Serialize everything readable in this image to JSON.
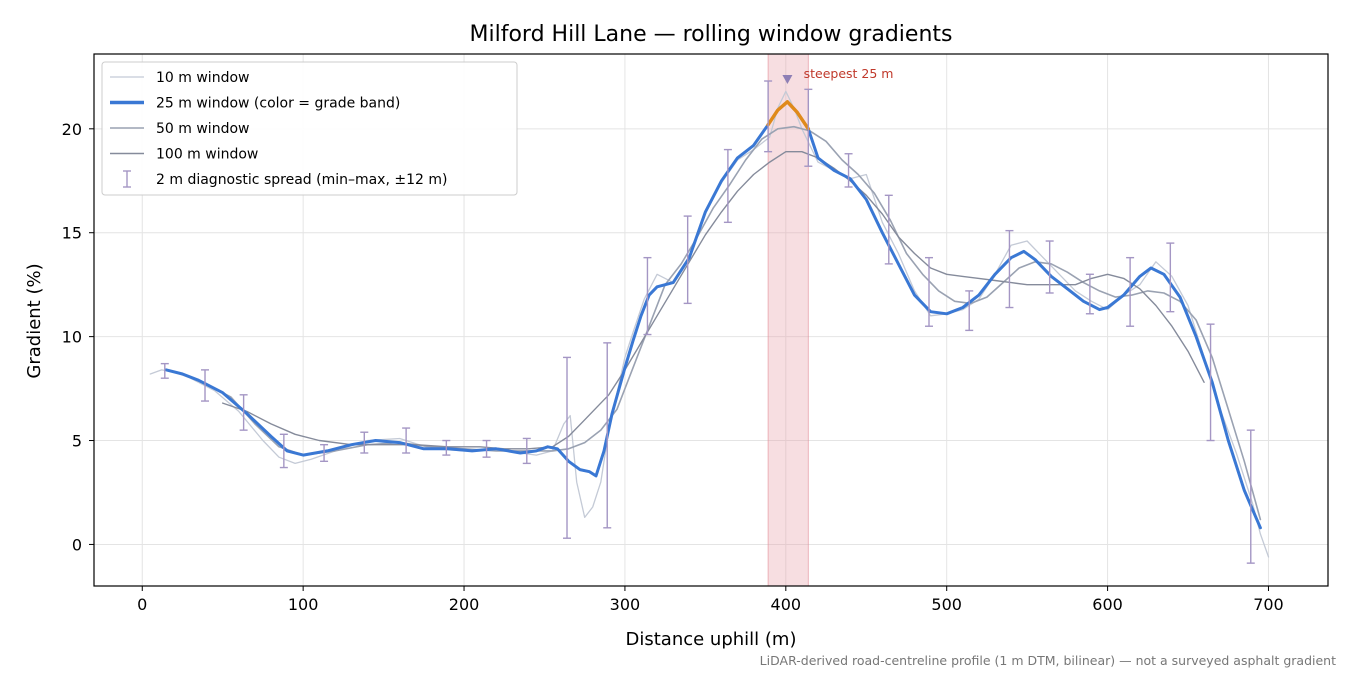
{
  "chart_data": {
    "type": "line",
    "title": "Milford Hill Lane — rolling window gradients",
    "xlabel": "Distance uphill (m)",
    "ylabel": "Gradient (%)",
    "xlim": [
      -30,
      737
    ],
    "ylim": [
      -2,
      23.6
    ],
    "xticks": [
      0,
      100,
      200,
      300,
      400,
      500,
      600,
      700
    ],
    "yticks": [
      0,
      5,
      10,
      15,
      20
    ],
    "grid": true,
    "legend_position": "top-left",
    "caption": "LiDAR-derived road-centreline profile (1 m DTM, bilinear) — not a surveyed asphalt gradient",
    "highlight": {
      "x_start": 389,
      "x_end": 414,
      "label": "steepest 25 m",
      "peak_x": 401,
      "peak_y": 22.3,
      "color": "#e8a0a8"
    },
    "series": [
      {
        "name": "10 m window",
        "color": "#c4cad6",
        "x": [
          5,
          12,
          20,
          30,
          45,
          60,
          75,
          85,
          95,
          105,
          120,
          140,
          160,
          180,
          200,
          220,
          235,
          245,
          255,
          262,
          266,
          270,
          275,
          280,
          285,
          290,
          300,
          305,
          312,
          320,
          330,
          340,
          350,
          360,
          370,
          380,
          390,
          395,
          400,
          405,
          410,
          415,
          420,
          430,
          440,
          450,
          460,
          470,
          480,
          490,
          500,
          510,
          520,
          530,
          540,
          550,
          560,
          570,
          580,
          590,
          600,
          610,
          620,
          630,
          640,
          650,
          660,
          670,
          680,
          690,
          695,
          700
        ],
        "y": [
          8.2,
          8.4,
          8.3,
          8.0,
          7.4,
          6.4,
          5.0,
          4.2,
          3.9,
          4.1,
          4.5,
          5.0,
          5.1,
          4.6,
          4.5,
          4.6,
          4.4,
          4.3,
          4.5,
          5.8,
          6.2,
          3.0,
          1.3,
          1.8,
          3.0,
          5.5,
          9.0,
          10.2,
          11.8,
          13.0,
          12.6,
          13.8,
          16.0,
          17.4,
          18.5,
          19.0,
          19.6,
          21.0,
          21.8,
          21.0,
          20.0,
          19.2,
          18.4,
          18.0,
          17.6,
          17.8,
          15.5,
          14.0,
          12.2,
          11.0,
          11.1,
          11.3,
          11.8,
          13.0,
          14.4,
          14.6,
          13.8,
          13.0,
          12.2,
          11.7,
          11.3,
          12.0,
          12.5,
          13.6,
          12.9,
          11.5,
          9.0,
          6.5,
          4.4,
          2.0,
          0.5,
          -0.6
        ]
      },
      {
        "name": "25 m window (color = grade band)",
        "color": "#3a78d4",
        "highlight_color": "#e08a1a",
        "x": [
          15,
          25,
          35,
          50,
          65,
          80,
          90,
          100,
          115,
          130,
          145,
          160,
          175,
          190,
          205,
          220,
          235,
          245,
          252,
          258,
          265,
          272,
          278,
          282,
          287,
          292,
          300,
          305,
          310,
          315,
          320,
          330,
          340,
          350,
          360,
          370,
          380,
          389,
          395,
          401,
          407,
          414,
          420,
          430,
          440,
          450,
          460,
          470,
          480,
          490,
          500,
          510,
          520,
          530,
          540,
          548,
          555,
          565,
          575,
          585,
          595,
          600,
          610,
          620,
          627,
          635,
          645,
          655,
          665,
          675,
          685,
          695
        ],
        "y": [
          8.4,
          8.2,
          7.9,
          7.3,
          6.3,
          5.2,
          4.5,
          4.3,
          4.5,
          4.8,
          5.0,
          4.9,
          4.6,
          4.6,
          4.5,
          4.6,
          4.4,
          4.5,
          4.7,
          4.6,
          4.0,
          3.6,
          3.5,
          3.3,
          4.5,
          6.3,
          8.5,
          9.8,
          11.0,
          12.0,
          12.4,
          12.6,
          13.8,
          16.0,
          17.5,
          18.6,
          19.2,
          20.2,
          20.9,
          21.3,
          20.8,
          20.0,
          18.6,
          18.0,
          17.6,
          16.6,
          15.0,
          13.5,
          12.0,
          11.2,
          11.1,
          11.4,
          12.0,
          13.0,
          13.8,
          14.1,
          13.7,
          12.9,
          12.3,
          11.7,
          11.3,
          11.4,
          12.0,
          12.9,
          13.3,
          13.0,
          11.9,
          10.0,
          7.8,
          5.0,
          2.6,
          0.8
        ]
      },
      {
        "name": "50 m window",
        "color": "#9aa2b2",
        "x": [
          25,
          40,
          55,
          70,
          85,
          100,
          120,
          140,
          160,
          180,
          200,
          220,
          240,
          255,
          265,
          275,
          285,
          295,
          305,
          315,
          325,
          335,
          345,
          355,
          365,
          375,
          385,
          395,
          405,
          415,
          425,
          435,
          445,
          455,
          465,
          475,
          485,
          495,
          505,
          515,
          525,
          535,
          545,
          555,
          565,
          575,
          585,
          595,
          605,
          615,
          625,
          635,
          645,
          655,
          665,
          675,
          685,
          695
        ],
        "y": [
          8.2,
          7.7,
          7.1,
          5.8,
          4.7,
          4.3,
          4.5,
          4.8,
          4.9,
          4.7,
          4.6,
          4.5,
          4.5,
          4.5,
          4.6,
          4.9,
          5.5,
          6.5,
          8.5,
          10.5,
          12.5,
          13.5,
          14.8,
          16.2,
          17.3,
          18.5,
          19.5,
          20.0,
          20.1,
          19.9,
          19.4,
          18.5,
          17.8,
          16.9,
          15.6,
          14.0,
          13.0,
          12.2,
          11.7,
          11.6,
          11.9,
          12.6,
          13.3,
          13.6,
          13.5,
          13.1,
          12.6,
          12.2,
          11.9,
          12.0,
          12.2,
          12.1,
          11.7,
          10.8,
          9.0,
          6.5,
          4.0,
          1.2
        ]
      },
      {
        "name": "100 m window",
        "color": "#858b9b",
        "x": [
          50,
          65,
          80,
          95,
          110,
          130,
          150,
          170,
          190,
          210,
          225,
          240,
          255,
          265,
          275,
          290,
          300,
          310,
          320,
          330,
          340,
          350,
          360,
          370,
          380,
          390,
          400,
          410,
          420,
          430,
          440,
          450,
          460,
          470,
          480,
          490,
          500,
          510,
          520,
          530,
          540,
          550,
          560,
          570,
          580,
          590,
          600,
          610,
          620,
          630,
          640,
          650,
          660
        ],
        "y": [
          6.8,
          6.4,
          5.8,
          5.3,
          5.0,
          4.8,
          4.8,
          4.8,
          4.7,
          4.7,
          4.6,
          4.6,
          4.7,
          5.2,
          6.0,
          7.2,
          8.4,
          9.7,
          11.0,
          12.3,
          13.6,
          14.9,
          16.0,
          17.0,
          17.8,
          18.4,
          18.9,
          18.9,
          18.6,
          18.1,
          17.5,
          16.8,
          15.9,
          14.8,
          14.0,
          13.3,
          13.0,
          12.9,
          12.8,
          12.7,
          12.6,
          12.5,
          12.5,
          12.5,
          12.5,
          12.8,
          13.0,
          12.8,
          12.3,
          11.5,
          10.5,
          9.3,
          7.8
        ]
      }
    ],
    "errorbars": {
      "name": "2 m diagnostic spread (min–max, ±12 m)",
      "color": "#a496c4",
      "points": [
        {
          "x": 14,
          "lo": 8.0,
          "hi": 8.7
        },
        {
          "x": 39,
          "lo": 6.9,
          "hi": 8.4
        },
        {
          "x": 63,
          "lo": 5.5,
          "hi": 7.2
        },
        {
          "x": 88,
          "lo": 3.7,
          "hi": 5.3
        },
        {
          "x": 113,
          "lo": 4.0,
          "hi": 4.8
        },
        {
          "x": 138,
          "lo": 4.4,
          "hi": 5.4
        },
        {
          "x": 164,
          "lo": 4.4,
          "hi": 5.6
        },
        {
          "x": 189,
          "lo": 4.3,
          "hi": 5.0
        },
        {
          "x": 214,
          "lo": 4.2,
          "hi": 5.0
        },
        {
          "x": 239,
          "lo": 3.9,
          "hi": 5.1
        },
        {
          "x": 264,
          "lo": 0.3,
          "hi": 9.0
        },
        {
          "x": 289,
          "lo": 0.8,
          "hi": 9.7
        },
        {
          "x": 314,
          "lo": 10.1,
          "hi": 13.8
        },
        {
          "x": 339,
          "lo": 11.6,
          "hi": 15.8
        },
        {
          "x": 364,
          "lo": 15.5,
          "hi": 19.0
        },
        {
          "x": 389,
          "lo": 18.9,
          "hi": 22.3
        },
        {
          "x": 414,
          "lo": 18.2,
          "hi": 21.9
        },
        {
          "x": 439,
          "lo": 17.2,
          "hi": 18.8
        },
        {
          "x": 464,
          "lo": 13.5,
          "hi": 16.8
        },
        {
          "x": 489,
          "lo": 10.5,
          "hi": 13.8
        },
        {
          "x": 514,
          "lo": 10.3,
          "hi": 12.2
        },
        {
          "x": 539,
          "lo": 11.4,
          "hi": 15.1
        },
        {
          "x": 564,
          "lo": 12.1,
          "hi": 14.6
        },
        {
          "x": 589,
          "lo": 11.1,
          "hi": 13.0
        },
        {
          "x": 614,
          "lo": 10.5,
          "hi": 13.8
        },
        {
          "x": 639,
          "lo": 11.2,
          "hi": 14.5
        },
        {
          "x": 664,
          "lo": 5.0,
          "hi": 10.6
        },
        {
          "x": 689,
          "lo": -0.9,
          "hi": 5.5
        }
      ]
    }
  }
}
